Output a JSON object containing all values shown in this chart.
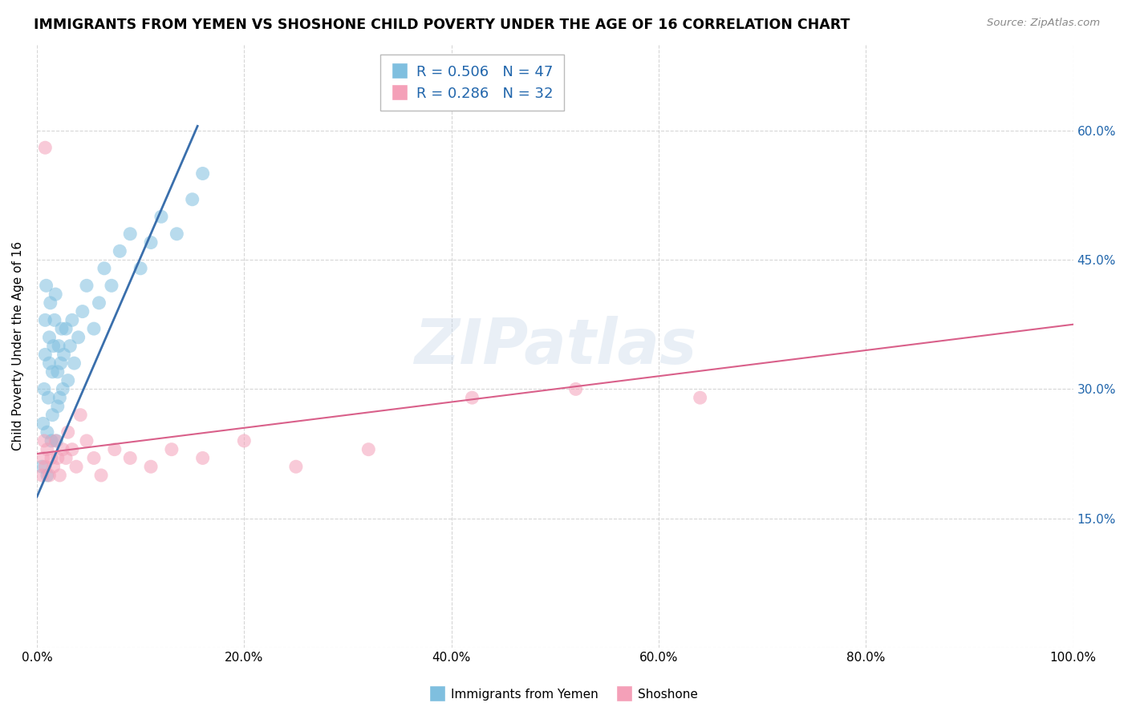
{
  "title": "IMMIGRANTS FROM YEMEN VS SHOSHONE CHILD POVERTY UNDER THE AGE OF 16 CORRELATION CHART",
  "source": "Source: ZipAtlas.com",
  "ylabel": "Child Poverty Under the Age of 16",
  "xlim": [
    0.0,
    1.0
  ],
  "ylim": [
    0.0,
    0.7
  ],
  "xticks": [
    0.0,
    0.2,
    0.4,
    0.6,
    0.8,
    1.0
  ],
  "xticklabels": [
    "0.0%",
    "20.0%",
    "40.0%",
    "60.0%",
    "80.0%",
    "100.0%"
  ],
  "yticks": [
    0.0,
    0.15,
    0.3,
    0.45,
    0.6
  ],
  "yticklabels": [
    "",
    "15.0%",
    "30.0%",
    "45.0%",
    "60.0%"
  ],
  "blue_R": "0.506",
  "blue_N": "47",
  "pink_R": "0.286",
  "pink_N": "32",
  "blue_color": "#7fbfdf",
  "pink_color": "#f4a0b8",
  "blue_line_color": "#3a6fac",
  "pink_line_color": "#d9608a",
  "legend_text_color": "#2166ac",
  "watermark": "ZIPatlas",
  "blue_scatter_x": [
    0.005,
    0.006,
    0.007,
    0.008,
    0.008,
    0.009,
    0.01,
    0.01,
    0.011,
    0.012,
    0.012,
    0.013,
    0.014,
    0.015,
    0.015,
    0.016,
    0.017,
    0.018,
    0.019,
    0.02,
    0.02,
    0.021,
    0.022,
    0.023,
    0.024,
    0.025,
    0.026,
    0.028,
    0.03,
    0.032,
    0.034,
    0.036,
    0.04,
    0.044,
    0.048,
    0.055,
    0.06,
    0.065,
    0.072,
    0.08,
    0.09,
    0.1,
    0.11,
    0.12,
    0.135,
    0.15,
    0.16
  ],
  "blue_scatter_y": [
    0.21,
    0.26,
    0.3,
    0.34,
    0.38,
    0.42,
    0.2,
    0.25,
    0.29,
    0.33,
    0.36,
    0.4,
    0.24,
    0.27,
    0.32,
    0.35,
    0.38,
    0.41,
    0.24,
    0.28,
    0.32,
    0.35,
    0.29,
    0.33,
    0.37,
    0.3,
    0.34,
    0.37,
    0.31,
    0.35,
    0.38,
    0.33,
    0.36,
    0.39,
    0.42,
    0.37,
    0.4,
    0.44,
    0.42,
    0.46,
    0.48,
    0.44,
    0.47,
    0.5,
    0.48,
    0.52,
    0.55
  ],
  "pink_scatter_x": [
    0.005,
    0.006,
    0.007,
    0.008,
    0.01,
    0.012,
    0.014,
    0.016,
    0.018,
    0.02,
    0.022,
    0.025,
    0.028,
    0.03,
    0.034,
    0.038,
    0.042,
    0.048,
    0.055,
    0.062,
    0.075,
    0.09,
    0.11,
    0.13,
    0.16,
    0.2,
    0.25,
    0.32,
    0.42,
    0.52,
    0.64,
    0.008
  ],
  "pink_scatter_y": [
    0.2,
    0.22,
    0.24,
    0.21,
    0.23,
    0.2,
    0.22,
    0.21,
    0.24,
    0.22,
    0.2,
    0.23,
    0.22,
    0.25,
    0.23,
    0.21,
    0.27,
    0.24,
    0.22,
    0.2,
    0.23,
    0.22,
    0.21,
    0.23,
    0.22,
    0.24,
    0.21,
    0.23,
    0.29,
    0.3,
    0.29,
    0.58
  ],
  "blue_line_x": [
    0.0,
    0.155
  ],
  "blue_line_y": [
    0.175,
    0.605
  ],
  "pink_line_x": [
    0.0,
    1.0
  ],
  "pink_line_y": [
    0.225,
    0.375
  ]
}
